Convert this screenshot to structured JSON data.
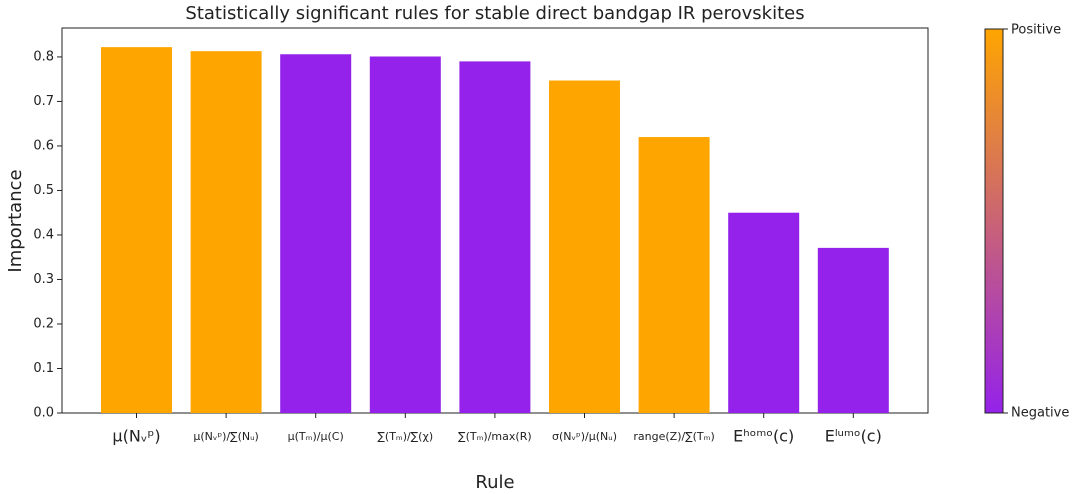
{
  "chart_data": {
    "type": "bar",
    "title": "Statistically significant rules for stable direct bandgap IR perovskites",
    "xlabel": "Rule",
    "ylabel": "Importance",
    "categories": [
      "μ(Nᵥᵖ)",
      "μ(Nᵥᵖ)/∑(Nᵤ)",
      "μ(Tₘ)/μ(C)",
      "∑(Tₘ)/∑(χ)",
      "∑(Tₘ)/max(R)",
      "σ(Nᵥᵖ)/μ(Nᵤ)",
      "range(Z)/∑(Tₘ)",
      "Eʰᵒᵐᵒ(c)",
      "Eˡᵘᵐᵒ(c)"
    ],
    "values": [
      0.822,
      0.813,
      0.806,
      0.801,
      0.79,
      0.747,
      0.62,
      0.45,
      0.371
    ],
    "colors": [
      "#ffa500",
      "#ffa500",
      "#9422ea",
      "#9422ea",
      "#9422ea",
      "#ffa500",
      "#ffa500",
      "#9422ea",
      "#9422ea"
    ],
    "ylim": [
      0,
      0.865
    ],
    "yticks": [
      0.0,
      0.1,
      0.2,
      0.3,
      0.4,
      0.5,
      0.6,
      0.7,
      0.8
    ],
    "ytick_labels": [
      "0.0",
      "0.1",
      "0.2",
      "0.3",
      "0.4",
      "0.5",
      "0.6",
      "0.7",
      "0.8"
    ],
    "colorbar": {
      "top_label": "Positive",
      "bottom_label": "Negative",
      "top_color": "#ffa500",
      "bottom_color": "#9422ea"
    }
  }
}
